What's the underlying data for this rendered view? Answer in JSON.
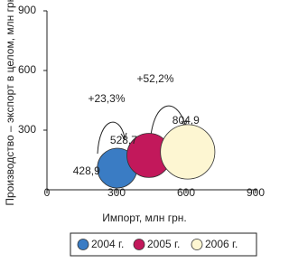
{
  "chart_data": {
    "type": "bubble",
    "x_label": "Импорт, млн грн.",
    "y_label": "Производство – экспорт в целом, млн грн.",
    "xlim": [
      0,
      900
    ],
    "xticks": [
      0,
      300,
      600,
      900
    ],
    "ylim": [
      0,
      900
    ],
    "yticks": [
      300,
      600,
      900
    ],
    "series": [
      {
        "name": "2004 г.",
        "color": "#3a7cc4",
        "x": [
          303
        ],
        "values": [
          109
        ],
        "sizes": [
          428.9
        ],
        "value_labels": [
          "428,9"
        ]
      },
      {
        "name": "2005 г.",
        "color": "#c2185b",
        "x": [
          440
        ],
        "values": [
          173
        ],
        "sizes": [
          528.7
        ],
        "value_labels": [
          "528,7"
        ]
      },
      {
        "name": "2006 г.",
        "color": "#fdf6d2",
        "x": [
          607
        ],
        "values": [
          191
        ],
        "sizes": [
          804.9
        ],
        "value_labels": [
          "804,9"
        ]
      }
    ],
    "annotations": [
      "+23,3%",
      "+52,2%"
    ],
    "legend": "bottom"
  }
}
